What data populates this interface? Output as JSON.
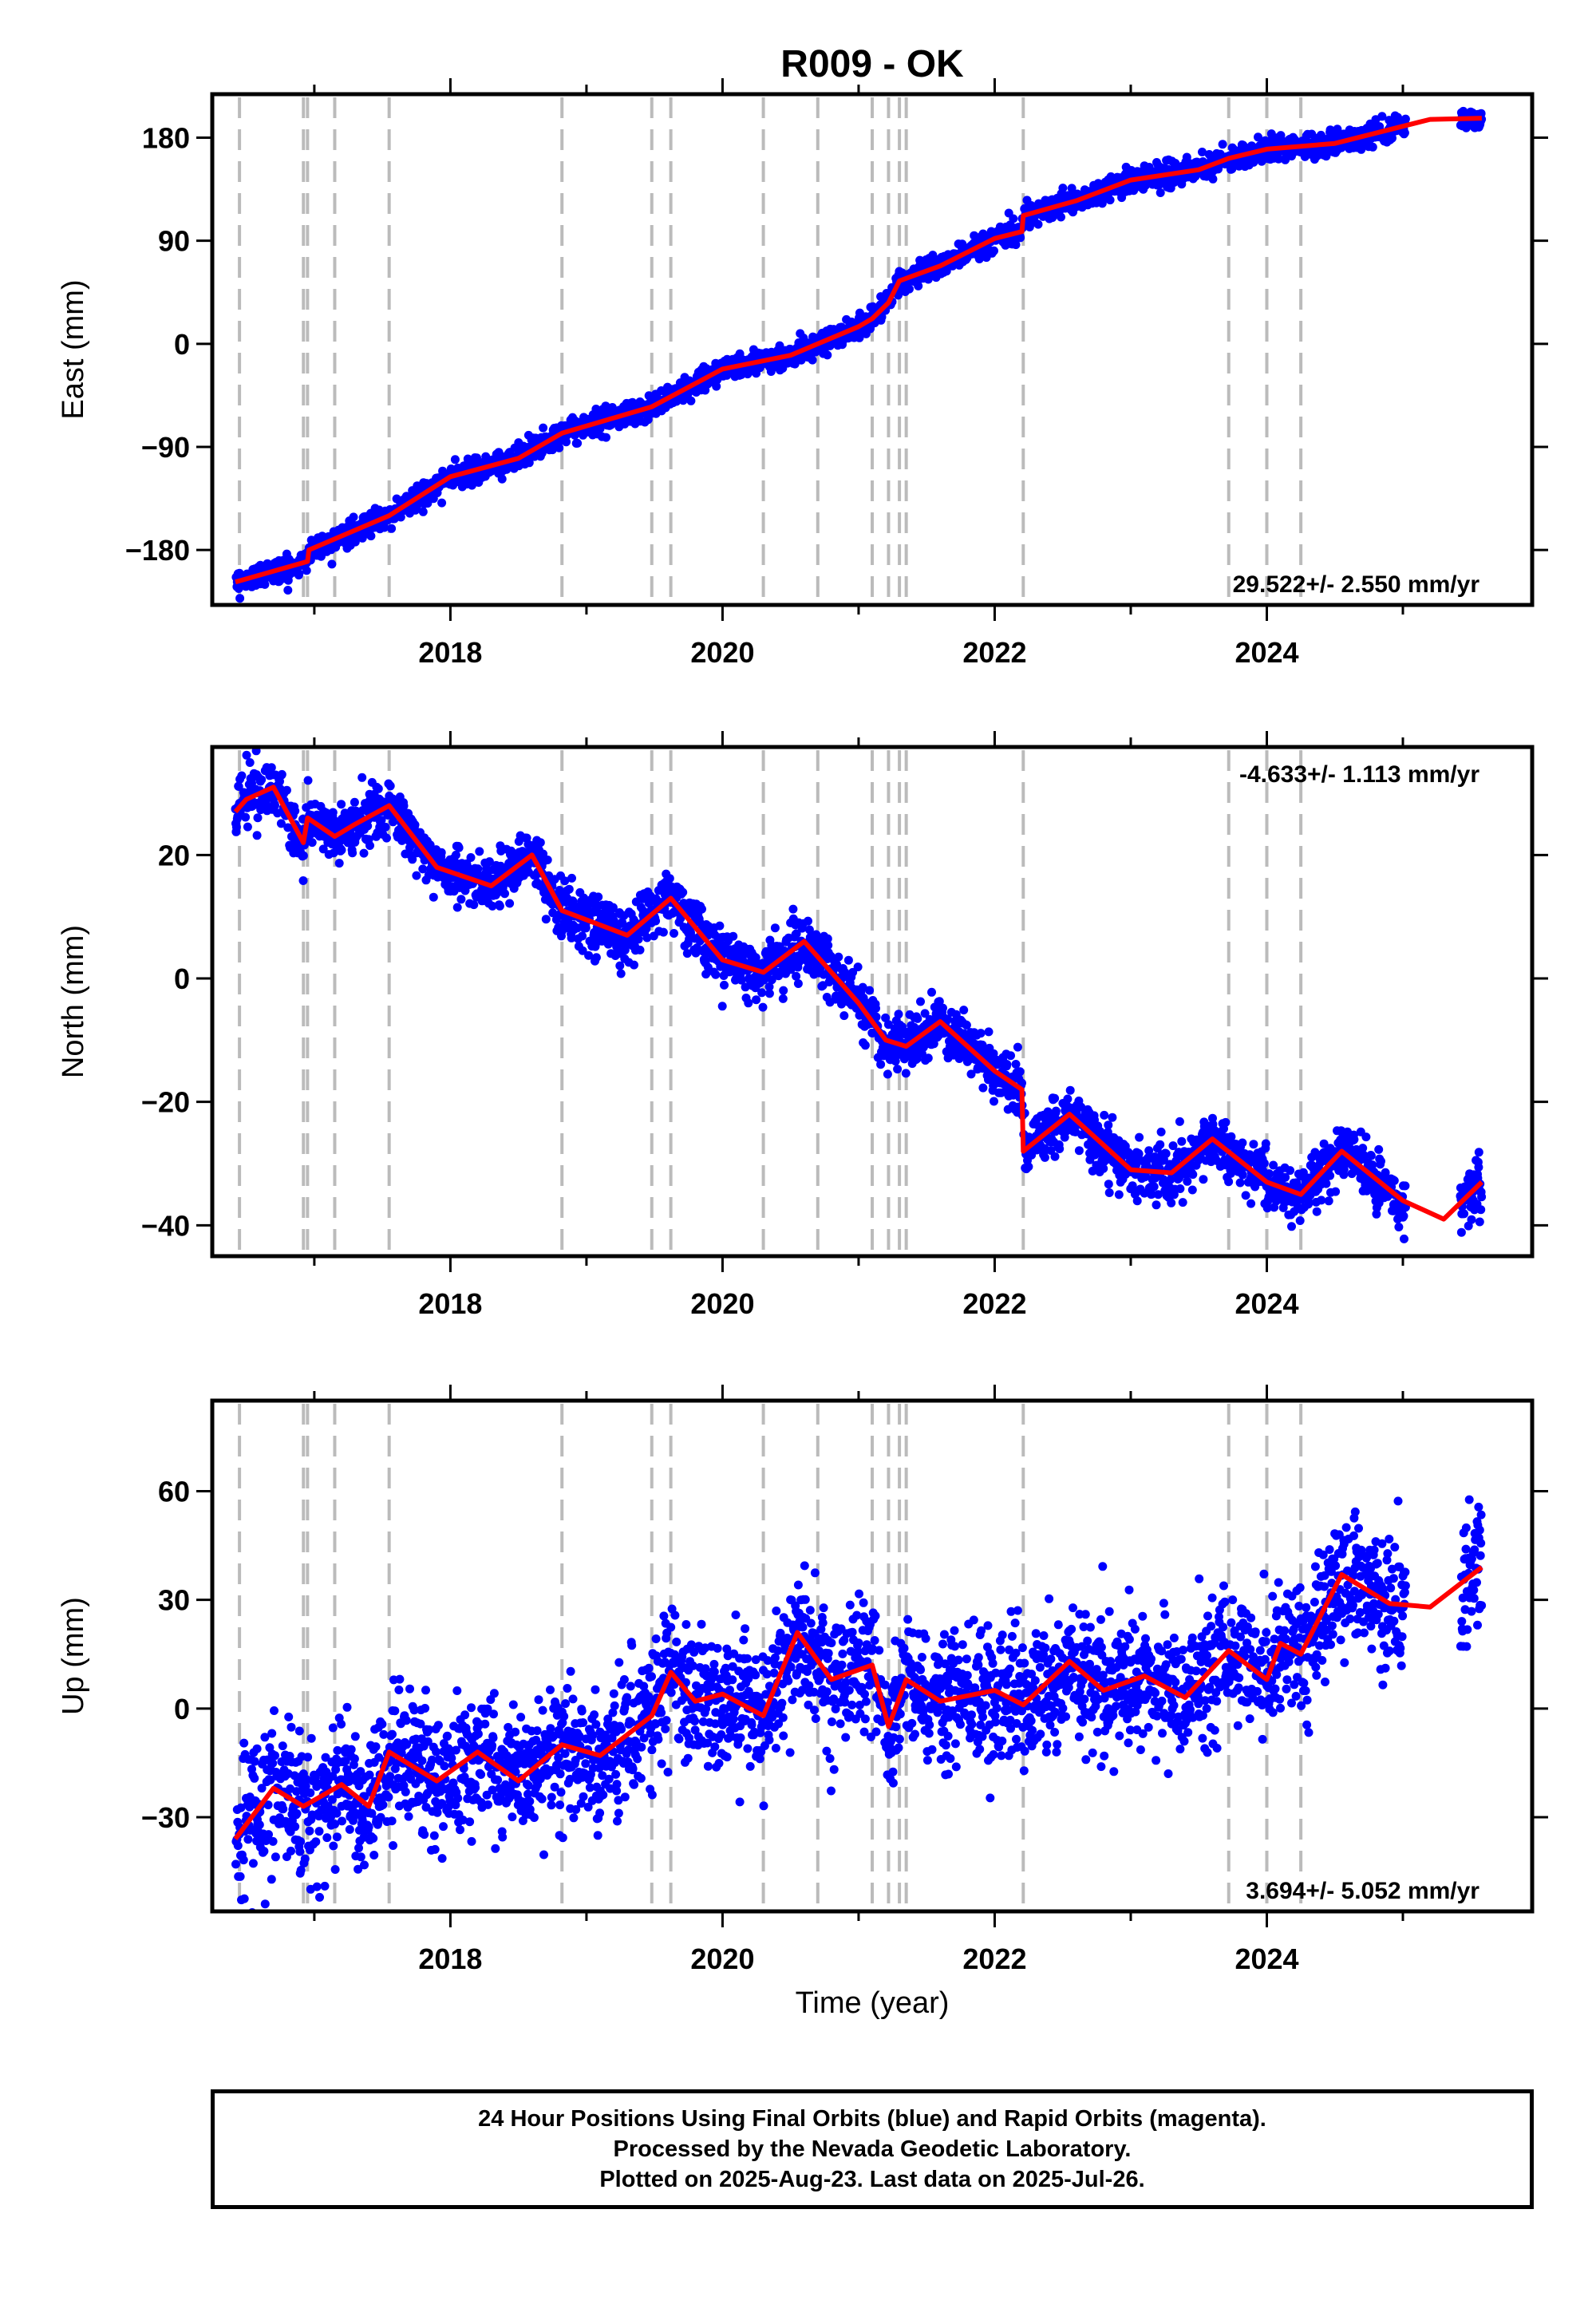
{
  "figure": {
    "title": "R009 - OK",
    "xlabel": "Time (year)"
  },
  "colors": {
    "final_orbits": "#0000ff",
    "model_fit": "#ff0000",
    "event_lines": "#bbbbbb",
    "frame": "#000000"
  },
  "event_years": [
    2016.45,
    2016.92,
    2016.95,
    2017.15,
    2017.55,
    2018.82,
    2019.48,
    2019.62,
    2020.3,
    2020.7,
    2021.1,
    2021.22,
    2021.3,
    2021.35,
    2022.21,
    2023.72,
    2024.0,
    2024.25
  ],
  "chart_data": [
    {
      "type": "scatter",
      "component": "east",
      "ylabel": "East (mm)",
      "xlim": [
        2016.25,
        2025.95
      ],
      "ylim": [
        -228,
        218
      ],
      "xticks": [
        2018,
        2020,
        2022,
        2024
      ],
      "xticklabels": [
        "2018",
        "2020",
        "2022",
        "2024"
      ],
      "yticks": [
        -180,
        -90,
        0,
        90,
        180
      ],
      "yticklabels": [
        "−180",
        "−90",
        "0",
        "90",
        "180"
      ],
      "rate": "29.522+/- 2.550 mm/yr",
      "rate_position": "bottom-right",
      "data_years": [
        2016.42,
        2025.58
      ],
      "noise": 5,
      "model": {
        "x": [
          2016.42,
          2016.95,
          2016.96,
          2017.55,
          2018.0,
          2018.5,
          2018.82,
          2019.48,
          2020.0,
          2020.5,
          2021.0,
          2021.1,
          2021.22,
          2021.3,
          2021.6,
          2022.0,
          2022.2,
          2022.21,
          2022.6,
          2023.0,
          2023.5,
          2023.72,
          2024.0,
          2024.5,
          2025.0,
          2025.2,
          2025.58
        ],
        "y": [
          -208,
          -190,
          -180,
          -150,
          -116,
          -100,
          -78,
          -55,
          -22,
          -10,
          15,
          22,
          36,
          55,
          68,
          92,
          98,
          112,
          125,
          143,
          152,
          162,
          170,
          175,
          190,
          196,
          197
        ]
      }
    },
    {
      "type": "scatter",
      "component": "north",
      "ylabel": "North (mm)",
      "xlim": [
        2016.25,
        2025.95
      ],
      "ylim": [
        -45,
        37.5
      ],
      "xticks": [
        2018,
        2020,
        2022,
        2024
      ],
      "xticklabels": [
        "2018",
        "2020",
        "2022",
        "2024"
      ],
      "yticks": [
        -40,
        -20,
        0,
        20
      ],
      "yticklabels": [
        "−40",
        "−20",
        "0",
        "20"
      ],
      "rate": "-4.633+/- 1.113 mm/yr",
      "rate_position": "top-right",
      "data_years": [
        2016.42,
        2025.58
      ],
      "noise": 2.2,
      "model": {
        "x": [
          2016.42,
          2016.5,
          2016.7,
          2016.92,
          2016.95,
          2017.15,
          2017.3,
          2017.55,
          2017.9,
          2018.3,
          2018.6,
          2018.82,
          2019.3,
          2019.62,
          2020.0,
          2020.3,
          2020.6,
          2021.0,
          2021.2,
          2021.35,
          2021.6,
          2022.0,
          2022.2,
          2022.21,
          2022.55,
          2023.0,
          2023.3,
          2023.6,
          2024.0,
          2024.25,
          2024.55,
          2025.0,
          2025.3,
          2025.58
        ],
        "y": [
          27,
          29,
          31,
          22,
          26,
          23,
          25,
          28,
          18,
          15,
          20,
          11,
          7,
          13,
          3,
          1,
          6,
          -4,
          -10,
          -11,
          -7,
          -15,
          -18,
          -28,
          -22,
          -31,
          -31.5,
          -26,
          -33,
          -35,
          -28,
          -36,
          -39,
          -33
        ]
      }
    },
    {
      "type": "scatter",
      "component": "up",
      "ylabel": "Up (mm)",
      "xlim": [
        2016.25,
        2025.95
      ],
      "ylim": [
        -56,
        85
      ],
      "xticks": [
        2018,
        2020,
        2022,
        2024
      ],
      "xticklabels": [
        "2018",
        "2020",
        "2022",
        "2024"
      ],
      "yticks": [
        -30,
        0,
        30,
        60
      ],
      "yticklabels": [
        "−30",
        "0",
        "30",
        "60"
      ],
      "rate": "3.694+/- 5.052 mm/yr",
      "rate_position": "bottom-right",
      "data_years": [
        2016.42,
        2025.58
      ],
      "noise": 9,
      "model": {
        "x": [
          2016.42,
          2016.7,
          2016.92,
          2017.2,
          2017.4,
          2017.55,
          2017.9,
          2018.2,
          2018.5,
          2018.82,
          2019.1,
          2019.48,
          2019.62,
          2019.8,
          2020.0,
          2020.3,
          2020.55,
          2020.8,
          2021.1,
          2021.22,
          2021.35,
          2021.6,
          2022.0,
          2022.21,
          2022.55,
          2022.8,
          2023.1,
          2023.4,
          2023.72,
          2024.0,
          2024.1,
          2024.25,
          2024.55,
          2024.9,
          2025.2,
          2025.58
        ],
        "y": [
          -36,
          -22,
          -27,
          -21,
          -27,
          -12,
          -20,
          -12,
          -20,
          -10,
          -13,
          -2,
          10,
          2,
          4,
          -2,
          21,
          8,
          12,
          -5,
          8,
          2,
          5,
          1,
          13,
          5,
          9,
          3,
          16,
          8,
          18,
          15,
          37,
          29,
          28,
          39
        ]
      }
    }
  ],
  "footer": {
    "line1": "24 Hour Positions Using Final Orbits (blue) and Rapid Orbits (magenta).",
    "line2": "Processed by the Nevada Geodetic Laboratory.",
    "line3": "Plotted on 2025-Aug-23. Last data on 2025-Jul-26."
  }
}
